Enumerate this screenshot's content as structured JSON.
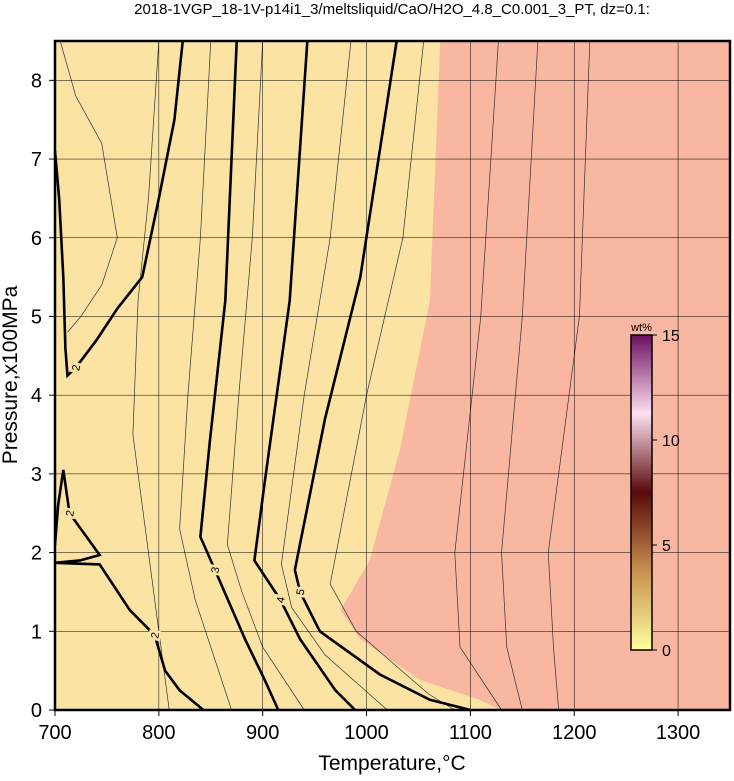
{
  "chart_data": {
    "type": "contour",
    "title": "2018-1VGP_18-1V-p14i1_3/meltsliquid/CaO/H2O_4.8_C0.001_3_PT, dz=0.1:",
    "x_label": "Temperature,°C",
    "y_label": "Pressure,x100MPa",
    "xlim": [
      700,
      1350
    ],
    "ylim": [
      0,
      8.5
    ],
    "xticks": [
      700,
      800,
      900,
      1000,
      1100,
      1200,
      1300
    ],
    "yticks": [
      0,
      1,
      2,
      3,
      4,
      5,
      6,
      7,
      8
    ],
    "grid": true,
    "background_color": "#fbe3a3",
    "filled_region": {
      "color": "#f9b6a0",
      "x": [
        1071,
        1061,
        1032,
        1003,
        975,
        994,
        1052,
        1109,
        1129,
        1350,
        1350
      ],
      "values": [
        8.5,
        5.2,
        3.3,
        1.9,
        1.27,
        0.9,
        0.38,
        0.13,
        0,
        0,
        8.5
      ]
    },
    "series": [
      {
        "name": "2",
        "color": "#000000",
        "x": [
          823,
          815,
          800,
          784,
          760,
          740,
          720,
          712,
          710,
          708,
          704,
          700,
          null,
          700,
          703,
          708,
          714,
          743,
          724,
          700,
          null,
          700,
          743,
          772,
          796,
          806,
          820,
          843
        ],
        "values": [
          8.5,
          7.5,
          6.5,
          5.5,
          5.1,
          4.7,
          4.35,
          4.25,
          4.6,
          5.5,
          6.5,
          7.1,
          null,
          2.1,
          2.6,
          3.05,
          2.5,
          1.97,
          1.9,
          1.87,
          null,
          1.87,
          1.85,
          1.27,
          0.95,
          0.5,
          0.25,
          0
        ]
      },
      {
        "name": "3",
        "color": "#000000",
        "x": [
          875,
          864,
          849,
          840,
          854,
          883,
          902,
          915
        ],
        "values": [
          8.5,
          5.2,
          3.4,
          2.2,
          1.78,
          0.9,
          0.38,
          0
        ]
      },
      {
        "name": "4",
        "color": "#000000",
        "x": [
          943,
          926,
          902,
          892,
          917,
          936,
          970,
          989
        ],
        "values": [
          8.5,
          5.2,
          2.9,
          1.9,
          1.4,
          0.9,
          0.25,
          0
        ]
      },
      {
        "name": "5",
        "color": "#000000",
        "x": [
          1029,
          994,
          960,
          931,
          936,
          955,
          1013,
          1061,
          1100
        ],
        "values": [
          8.5,
          5.5,
          3.7,
          1.78,
          1.5,
          1.0,
          0.45,
          0.13,
          0
        ]
      }
    ],
    "thin_contours": [
      {
        "x": [
          705,
          720,
          745,
          760,
          745,
          725,
          712
        ],
        "values": [
          8.5,
          7.8,
          7.2,
          6.0,
          5.4,
          5.0,
          4.8
        ]
      },
      {
        "x": [
          800,
          790,
          780,
          775,
          790,
          810
        ],
        "values": [
          8.5,
          6.5,
          5.2,
          3.5,
          2.0,
          0
        ]
      },
      {
        "x": [
          850,
          840,
          828,
          820,
          835,
          870
        ],
        "values": [
          8.5,
          6.0,
          4.0,
          2.3,
          1.4,
          0
        ]
      },
      {
        "x": [
          900,
          890,
          877,
          866,
          880,
          900,
          940
        ],
        "values": [
          8.5,
          6.0,
          4.0,
          2.1,
          1.5,
          0.8,
          0
        ]
      },
      {
        "x": [
          985,
          965,
          940,
          918,
          928,
          960,
          1020
        ],
        "values": [
          8.5,
          6.0,
          4.0,
          1.85,
          1.3,
          0.7,
          0
        ]
      },
      {
        "x": [
          1055,
          1035,
          1000,
          965,
          990,
          1060,
          1085
        ],
        "values": [
          8.5,
          6.0,
          4.0,
          1.6,
          1.0,
          0.2,
          0
        ]
      },
      {
        "x": [
          1127,
          1110,
          1085,
          1090,
          1130
        ],
        "values": [
          8.5,
          5.0,
          2.0,
          0.8,
          0
        ]
      },
      {
        "x": [
          1165,
          1150,
          1130,
          1135,
          1150
        ],
        "values": [
          8.5,
          5.0,
          2.0,
          0.8,
          0
        ]
      },
      {
        "x": [
          1215,
          1205,
          1175,
          1180,
          1185
        ],
        "values": [
          8.5,
          5.0,
          2.0,
          0.8,
          0
        ]
      }
    ],
    "colorbar": {
      "label": "wt%",
      "lim": [
        0,
        15
      ],
      "ticks": [
        0,
        5,
        10,
        15
      ],
      "colors": [
        "#ffffa0",
        "#c89050",
        "#5a0a0a",
        "#ffe0f0",
        "#6a1060"
      ]
    }
  }
}
